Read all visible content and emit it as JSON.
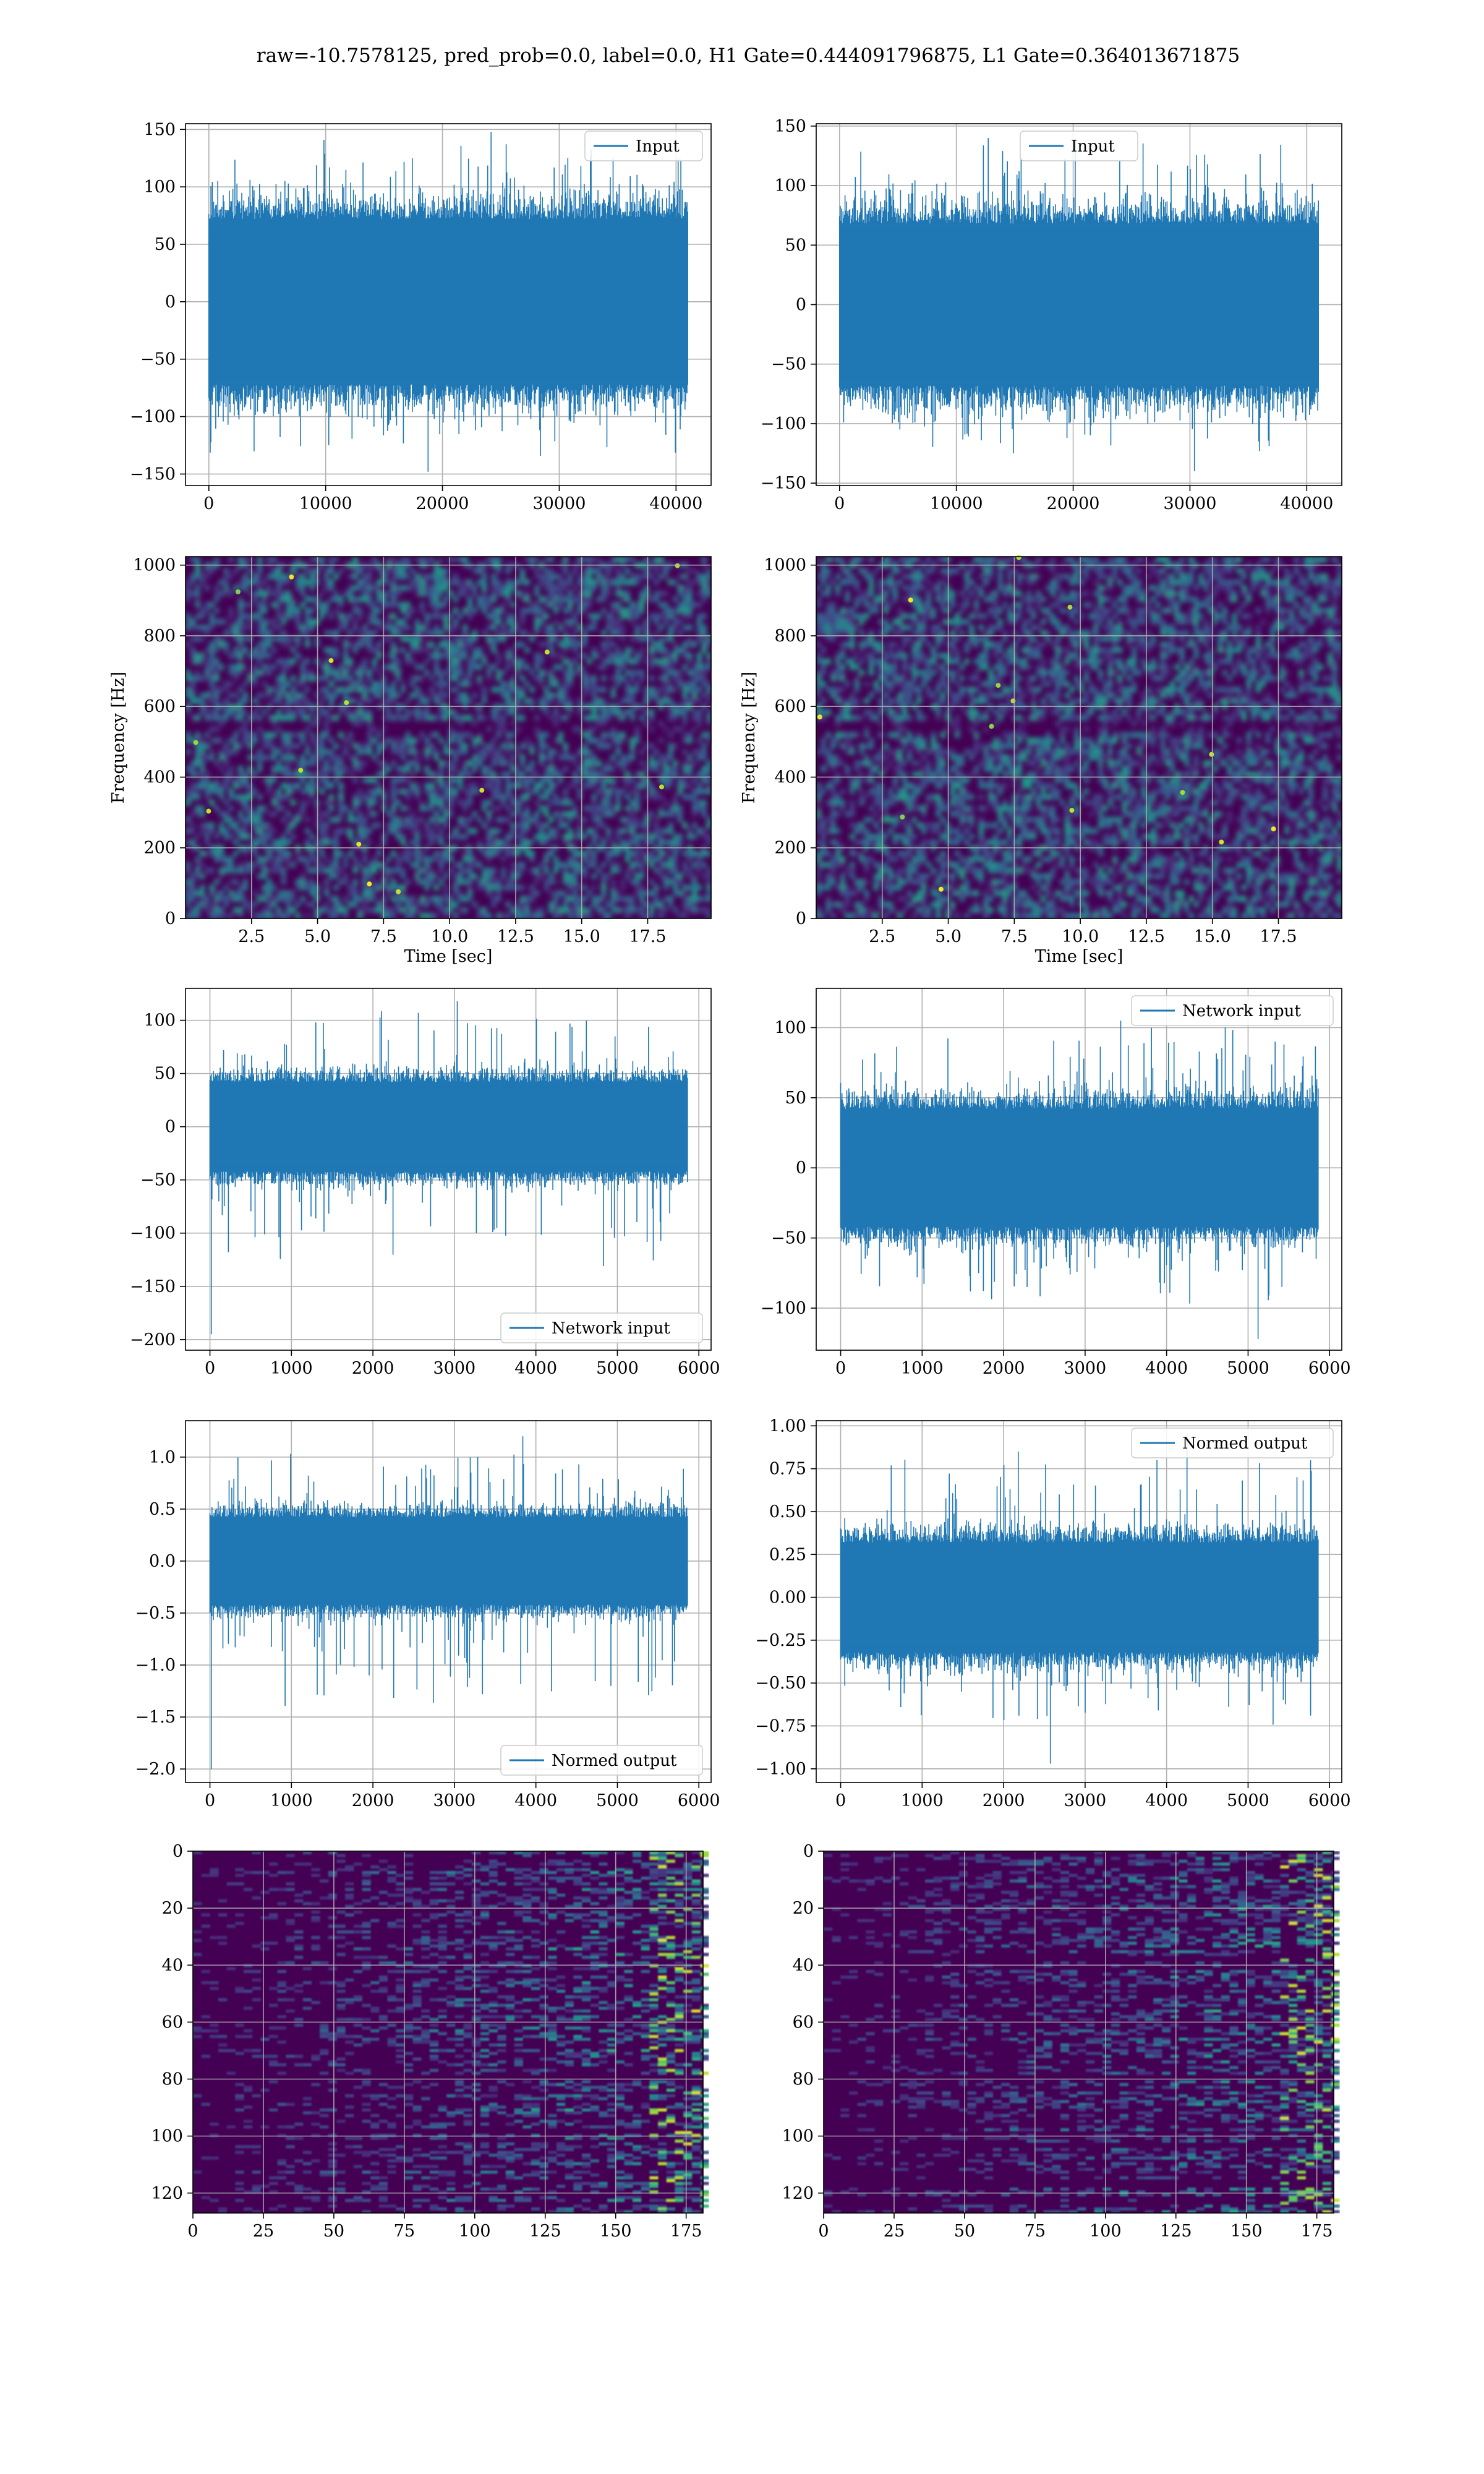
{
  "title": "raw=-10.7578125, pred_prob=0.0, label=0.0, H1 Gate=0.444091796875, L1 Gate=0.364013671875",
  "colors": {
    "line": "#1f77b4",
    "grid": "#b0b0b0",
    "viridis_dark": "#440154",
    "viridis_yellow": "#fde725"
  },
  "chart_data": [
    {
      "id": "p1",
      "type": "line",
      "legend": "Input",
      "legend_loc": "upper right",
      "xlim": [
        -2000,
        43000
      ],
      "ylim": [
        -160,
        155
      ],
      "xticks": [
        0,
        10000,
        20000,
        30000,
        40000
      ],
      "yticks": [
        -150,
        -100,
        -50,
        0,
        50,
        100,
        150
      ],
      "x_range": [
        0,
        41000
      ],
      "envelope": {
        "core": [
          -72,
          72
        ],
        "peak_max": 141,
        "peak_min": -148
      }
    },
    {
      "id": "p2",
      "type": "line",
      "legend": "Input",
      "legend_loc": "upper center",
      "xlim": [
        -2000,
        43000
      ],
      "ylim": [
        -152,
        152
      ],
      "xticks": [
        0,
        10000,
        20000,
        30000,
        40000
      ],
      "yticks": [
        -150,
        -100,
        -50,
        0,
        50,
        100,
        150
      ],
      "x_range": [
        0,
        41000
      ],
      "envelope": {
        "core": [
          -68,
          68
        ],
        "peak_max": 140,
        "peak_min": -140
      }
    },
    {
      "id": "p3",
      "type": "heatmap",
      "ylabel": "Frequency [Hz]",
      "xlabel": "Time [sec]",
      "xlim": [
        0,
        19.9
      ],
      "ylim": [
        0,
        1024
      ],
      "xticks": [
        2.5,
        5.0,
        7.5,
        10.0,
        12.5,
        15.0,
        17.5
      ],
      "yticks": [
        0,
        200,
        400,
        600,
        800,
        1000
      ]
    },
    {
      "id": "p4",
      "type": "heatmap",
      "ylabel": "Frequency [Hz]",
      "xlabel": "Time [sec]",
      "xlim": [
        0,
        19.9
      ],
      "ylim": [
        0,
        1024
      ],
      "xticks": [
        2.5,
        5.0,
        7.5,
        10.0,
        12.5,
        15.0,
        17.5
      ],
      "yticks": [
        0,
        200,
        400,
        600,
        800,
        1000
      ]
    },
    {
      "id": "p5",
      "type": "line",
      "legend": "Network input",
      "legend_loc": "lower right",
      "xlim": [
        -300,
        6150
      ],
      "ylim": [
        -210,
        130
      ],
      "xticks": [
        0,
        1000,
        2000,
        3000,
        4000,
        5000,
        6000
      ],
      "yticks": [
        -200,
        -150,
        -100,
        -50,
        0,
        50,
        100
      ],
      "x_range": [
        0,
        5860
      ],
      "envelope": {
        "core": [
          -42,
          42
        ],
        "peak_max": 118,
        "peak_min": -195
      }
    },
    {
      "id": "p6",
      "type": "line",
      "legend": "Network input",
      "legend_loc": "upper right",
      "xlim": [
        -300,
        6150
      ],
      "ylim": [
        -130,
        128
      ],
      "xticks": [
        0,
        1000,
        2000,
        3000,
        4000,
        5000,
        6000
      ],
      "yticks": [
        -100,
        -50,
        0,
        50,
        100
      ],
      "x_range": [
        0,
        5860
      ],
      "envelope": {
        "core": [
          -42,
          42
        ],
        "peak_max": 105,
        "peak_min": -122
      }
    },
    {
      "id": "p7",
      "type": "line",
      "legend": "Normed output",
      "legend_loc": "lower right",
      "xlim": [
        -300,
        6150
      ],
      "ylim": [
        -2.13,
        1.35
      ],
      "xticks": [
        0,
        1000,
        2000,
        3000,
        4000,
        5000,
        6000
      ],
      "yticks": [
        -2.0,
        -1.5,
        -1.0,
        -0.5,
        0.0,
        0.5,
        1.0
      ],
      "x_range": [
        0,
        5860
      ],
      "envelope": {
        "core": [
          -0.42,
          0.42
        ],
        "peak_max": 1.2,
        "peak_min": -2.0
      }
    },
    {
      "id": "p8",
      "type": "line",
      "legend": "Normed output",
      "legend_loc": "upper right",
      "xlim": [
        -300,
        6150
      ],
      "ylim": [
        -1.08,
        1.03
      ],
      "xticks": [
        0,
        1000,
        2000,
        3000,
        4000,
        5000,
        6000
      ],
      "yticks": [
        -1.0,
        -0.75,
        -0.5,
        -0.25,
        0.0,
        0.25,
        0.5,
        0.75,
        1.0
      ],
      "x_range": [
        0,
        5860
      ],
      "envelope": {
        "core": [
          -0.32,
          0.32
        ],
        "peak_max": 0.95,
        "peak_min": -0.97
      }
    },
    {
      "id": "p9",
      "type": "heatmap",
      "origin": "upper",
      "xlim": [
        0,
        181
      ],
      "ylim": [
        127,
        0
      ],
      "xticks": [
        0,
        25,
        50,
        75,
        100,
        125,
        150,
        175
      ],
      "yticks": [
        0,
        20,
        40,
        60,
        80,
        100,
        120
      ]
    },
    {
      "id": "p10",
      "type": "heatmap",
      "origin": "upper",
      "xlim": [
        0,
        181
      ],
      "ylim": [
        127,
        0
      ],
      "xticks": [
        0,
        25,
        50,
        75,
        100,
        125,
        150,
        175
      ],
      "yticks": [
        0,
        20,
        40,
        60,
        80,
        100,
        120
      ]
    }
  ]
}
